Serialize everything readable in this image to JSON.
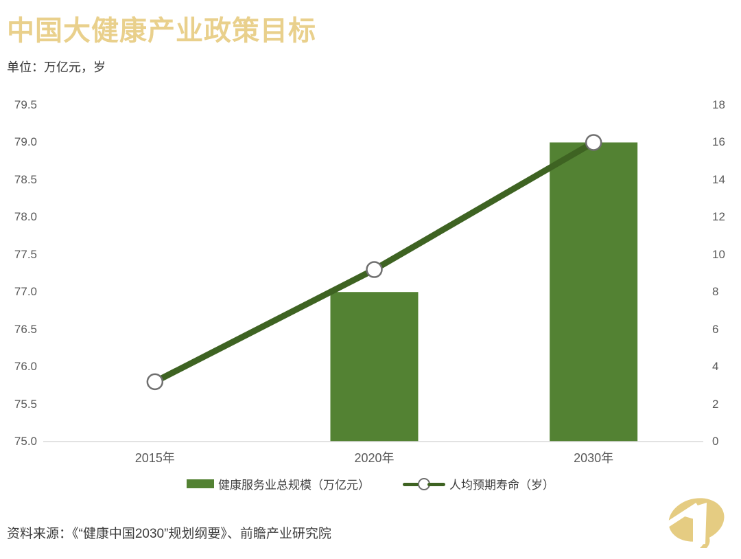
{
  "header": {
    "title": "中国大健康产业政策目标",
    "unit": "单位：万亿元，岁"
  },
  "chart_data": {
    "type": "bar",
    "subtype": "bar+line combo",
    "title": "中国大健康产业政策目标",
    "unit_note": "单位：万亿元，岁",
    "categories": [
      "2015年",
      "2020年",
      "2030年"
    ],
    "series": [
      {
        "name": "健康服务业总规模（万亿元）",
        "type": "bar",
        "axis": "right",
        "values": [
          null,
          8,
          16
        ],
        "color": "#538233"
      },
      {
        "name": "人均预期寿命（岁）",
        "type": "line",
        "axis": "left",
        "values": [
          75.8,
          77.3,
          79.0
        ],
        "color": "#3e6322",
        "marker": "open-circle"
      }
    ],
    "axis_left": {
      "min": 75.0,
      "max": 79.5,
      "step": 0.5,
      "decimals": 1
    },
    "axis_right": {
      "min": 0,
      "max": 18,
      "step": 2,
      "decimals": 0
    },
    "grid": false,
    "legend_position": "bottom"
  },
  "legend": {
    "items": [
      {
        "label": "健康服务业总规模（万亿元）"
      },
      {
        "label": "人均预期寿命（岁）"
      }
    ]
  },
  "footer": {
    "source": "资料来源：《“健康中国2030”规划纲要》、前瞻产业研究院"
  },
  "icons": {
    "logo": "qianzhan-gold-logo"
  },
  "colors": {
    "title_gold": "#e9d08c",
    "logo_gold": "#e5cc82",
    "bar_green": "#538233",
    "line_green": "#3e6322",
    "marker_stroke": "#6f6f6f",
    "axis_text": "#595959",
    "baseline": "#d9d9d9"
  }
}
